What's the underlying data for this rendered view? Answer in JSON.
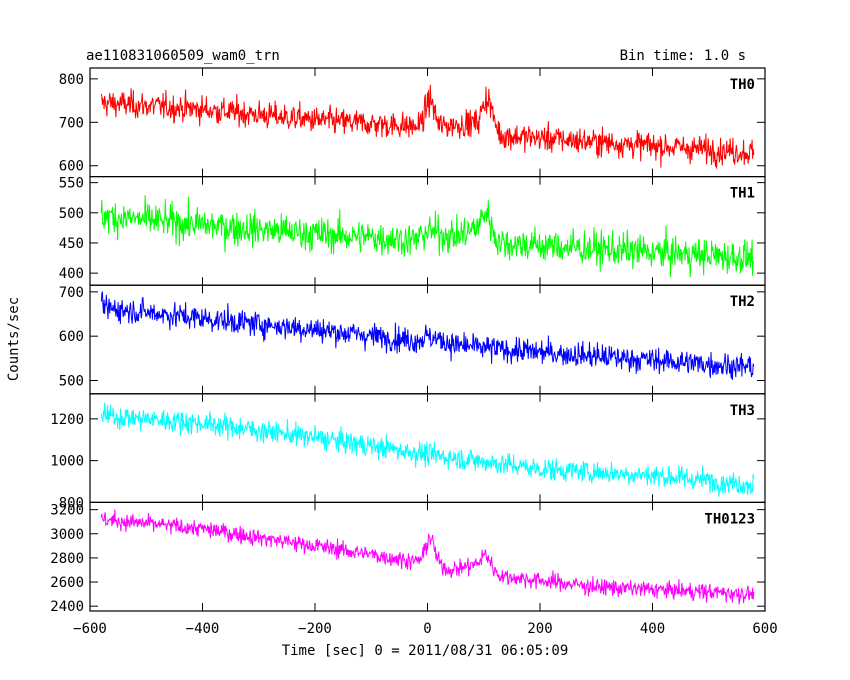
{
  "chart_data": {
    "type": "line",
    "title": "ae110831060509_wam0_trn",
    "subtitle": "Bin time: 1.0 s",
    "xlabel": "Time [sec] 0 = 2011/08/31 06:05:09",
    "ylabel": "Counts/sec",
    "xlim": [
      -600,
      600
    ],
    "xticks": [
      -600,
      -400,
      -200,
      0,
      200,
      400,
      600
    ],
    "xtick_labels": [
      "−600",
      "−400",
      "−200",
      "0",
      "200",
      "400",
      "600"
    ],
    "data_range": [
      -580,
      580
    ],
    "grid": false,
    "panels": [
      {
        "name": "TH0",
        "color": "#ff0000",
        "ylim": [
          575,
          825
        ],
        "yticks": [
          600,
          700,
          800
        ],
        "trend": [
          [
            -580,
            745
          ],
          [
            -400,
            730
          ],
          [
            -200,
            705
          ],
          [
            -20,
            690
          ],
          [
            0,
            705
          ],
          [
            20,
            690
          ],
          [
            90,
            700
          ],
          [
            110,
            720
          ],
          [
            130,
            670
          ],
          [
            300,
            655
          ],
          [
            580,
            630
          ]
        ],
        "noise": 22,
        "flares": [
          [
            5,
            50,
            10
          ],
          [
            105,
            40,
            10
          ]
        ]
      },
      {
        "name": "TH1",
        "color": "#00ff00",
        "ylim": [
          380,
          560
        ],
        "yticks": [
          400,
          450,
          500,
          550
        ],
        "trend": [
          [
            -580,
            495
          ],
          [
            -400,
            480
          ],
          [
            -200,
            465
          ],
          [
            -20,
            455
          ],
          [
            0,
            470
          ],
          [
            50,
            460
          ],
          [
            100,
            480
          ],
          [
            130,
            450
          ],
          [
            300,
            440
          ],
          [
            580,
            425
          ]
        ],
        "noise": 20,
        "flares": [
          [
            105,
            25,
            10
          ]
        ]
      },
      {
        "name": "TH2",
        "color": "#0000ff",
        "ylim": [
          470,
          715
        ],
        "yticks": [
          500,
          600,
          700
        ],
        "trend": [
          [
            -580,
            665
          ],
          [
            -400,
            640
          ],
          [
            -200,
            615
          ],
          [
            -20,
            590
          ],
          [
            0,
            600
          ],
          [
            50,
            580
          ],
          [
            130,
            570
          ],
          [
            300,
            555
          ],
          [
            580,
            530
          ]
        ],
        "noise": 20,
        "flares": []
      },
      {
        "name": "TH3",
        "color": "#00ffff",
        "ylim": [
          800,
          1320
        ],
        "yticks": [
          800,
          1000,
          1200
        ],
        "trend": [
          [
            -580,
            1215
          ],
          [
            -400,
            1180
          ],
          [
            -200,
            1110
          ],
          [
            0,
            1030
          ],
          [
            200,
            960
          ],
          [
            400,
            930
          ],
          [
            580,
            885
          ]
        ],
        "noise": 38,
        "flares": []
      },
      {
        "name": "TH0123",
        "color": "#ff00ff",
        "ylim": [
          2360,
          3260
        ],
        "yticks": [
          2400,
          2600,
          2800,
          3000,
          3200
        ],
        "trend": [
          [
            -580,
            3120
          ],
          [
            -400,
            3040
          ],
          [
            -200,
            2900
          ],
          [
            -20,
            2770
          ],
          [
            0,
            2800
          ],
          [
            40,
            2700
          ],
          [
            100,
            2760
          ],
          [
            130,
            2650
          ],
          [
            300,
            2560
          ],
          [
            580,
            2500
          ]
        ],
        "noise": 50,
        "flares": [
          [
            5,
            180,
            10
          ],
          [
            105,
            80,
            10
          ]
        ]
      }
    ]
  }
}
